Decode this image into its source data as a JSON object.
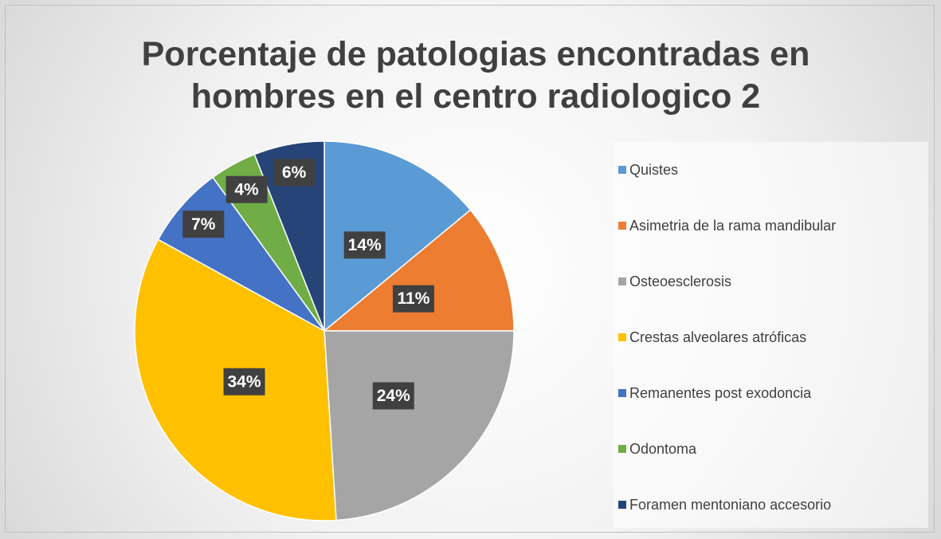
{
  "chart_data": {
    "type": "pie",
    "title": "Porcentaje de patologias encontradas en hombres en el centro radiologico 2",
    "categories": [
      "Quistes",
      "Asimetria de la rama mandibular",
      "Osteoesclerosis",
      "Crestas alveolares atróficas",
      "Remanentes post exodoncia",
      "Odontoma",
      "Foramen mentoniano accesorio"
    ],
    "values": [
      14,
      11,
      24,
      34,
      7,
      4,
      6
    ],
    "value_labels": [
      "14%",
      "11%",
      "24%",
      "34%",
      "7%",
      "4%",
      "6%"
    ],
    "colors": [
      "#5b9bd5",
      "#ed7d31",
      "#a5a5a5",
      "#ffc000",
      "#4472c4",
      "#70ad47",
      "#264478"
    ],
    "legend": "right"
  }
}
